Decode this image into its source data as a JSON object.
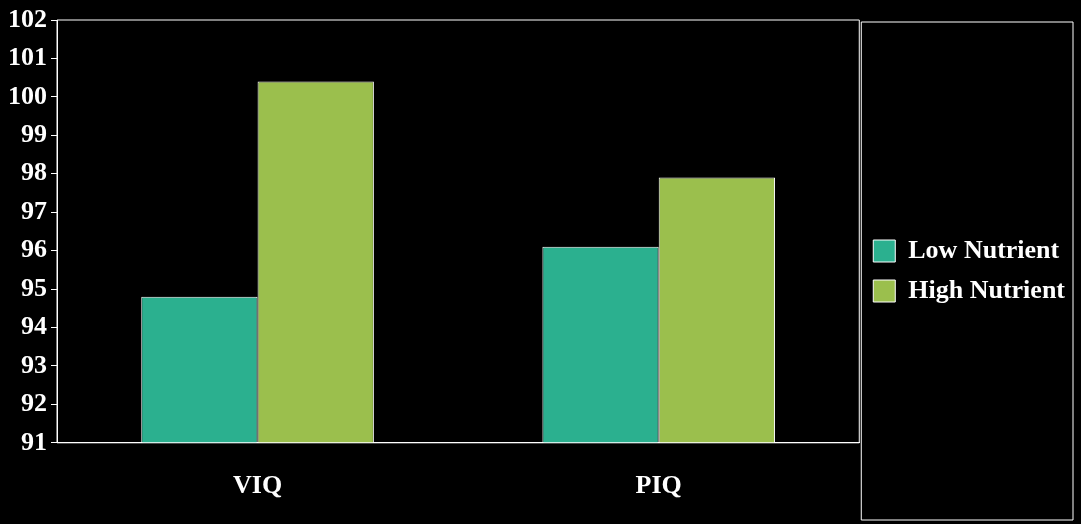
{
  "chart_data": {
    "type": "bar",
    "categories": [
      "VIQ",
      "PIQ"
    ],
    "series": [
      {
        "name": "Low Nutrient",
        "color": "#2bb08f",
        "values": [
          94.8,
          96.1
        ]
      },
      {
        "name": "High Nutrient",
        "color": "#9bbf4d",
        "values": [
          100.4,
          97.9
        ]
      }
    ],
    "ylim": [
      91,
      102
    ],
    "yticks": [
      91,
      92,
      93,
      94,
      95,
      96,
      97,
      98,
      99,
      100,
      101,
      102
    ],
    "grid": false,
    "legend": "right"
  }
}
